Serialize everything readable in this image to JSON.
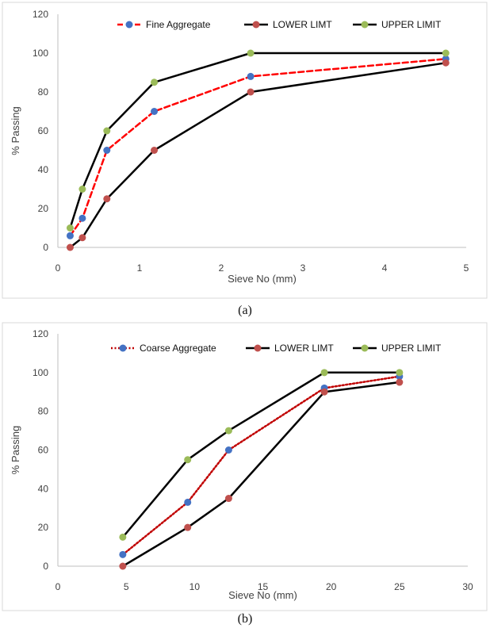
{
  "chart_data": [
    {
      "type": "line",
      "caption": "(a)",
      "xlabel": "Sieve No (mm)",
      "ylabel": "% Passing",
      "xlim": [
        0,
        5
      ],
      "ylim": [
        0,
        120
      ],
      "xticks": [
        0,
        1,
        2,
        3,
        4,
        5
      ],
      "yticks": [
        0,
        20,
        40,
        60,
        80,
        100,
        120
      ],
      "legend_position": "top-right",
      "series": [
        {
          "name": "Fine Aggregate",
          "color": "#ff0000",
          "marker": "#4472c4",
          "style": "dashed",
          "x": [
            0.15,
            0.3,
            0.6,
            1.18,
            2.36,
            4.75
          ],
          "y": [
            6,
            15,
            50,
            70,
            88,
            97
          ]
        },
        {
          "name": "LOWER LIMT",
          "color": "#000000",
          "marker": "#c0504d",
          "style": "solid",
          "x": [
            0.15,
            0.3,
            0.6,
            1.18,
            2.36,
            4.75
          ],
          "y": [
            0,
            5,
            25,
            50,
            80,
            95
          ]
        },
        {
          "name": "UPPER LIMIT",
          "color": "#000000",
          "marker": "#9bbb59",
          "style": "solid",
          "x": [
            0.15,
            0.3,
            0.6,
            1.18,
            2.36,
            4.75
          ],
          "y": [
            10,
            30,
            60,
            85,
            100,
            100
          ]
        }
      ]
    },
    {
      "type": "line",
      "caption": "(b)",
      "xlabel": "Sieve No (mm)",
      "ylabel": "% Passing",
      "xlim": [
        0,
        30
      ],
      "ylim": [
        0,
        120
      ],
      "xticks": [
        0,
        5,
        10,
        15,
        20,
        25,
        30
      ],
      "yticks": [
        0,
        20,
        40,
        60,
        80,
        100,
        120
      ],
      "legend_position": "top-right",
      "series": [
        {
          "name": "Coarse Aggregate",
          "color": "#c00000",
          "marker": "#4472c4",
          "style": "dotted",
          "x": [
            4.75,
            9.5,
            12.5,
            19.5,
            25
          ],
          "y": [
            6,
            33,
            60,
            92,
            98
          ]
        },
        {
          "name": "LOWER LIMT",
          "color": "#000000",
          "marker": "#c0504d",
          "style": "solid",
          "x": [
            4.75,
            9.5,
            12.5,
            19.5,
            25
          ],
          "y": [
            0,
            20,
            35,
            90,
            95
          ]
        },
        {
          "name": "UPPER LIMIT",
          "color": "#000000",
          "marker": "#9bbb59",
          "style": "solid",
          "x": [
            4.75,
            9.5,
            12.5,
            19.5,
            25
          ],
          "y": [
            15,
            55,
            70,
            100,
            100
          ]
        }
      ]
    }
  ]
}
